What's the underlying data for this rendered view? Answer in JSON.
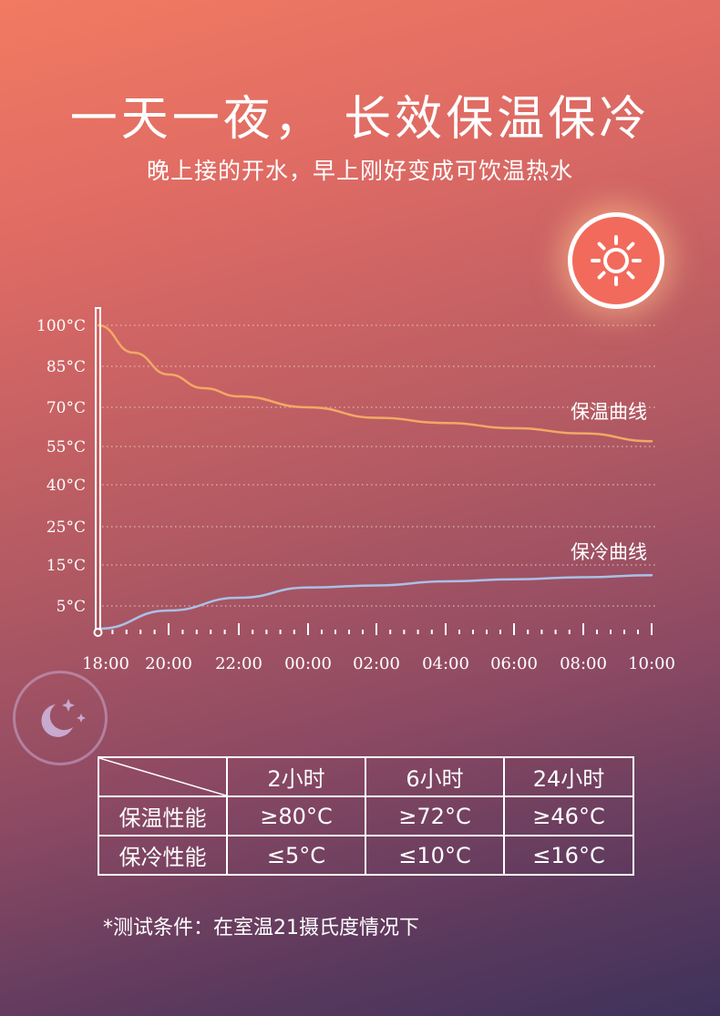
{
  "title": "一天一夜，  长效保温保冷",
  "subtitle": "晚上接的开水，早上刚好变成可饮温热水",
  "icons": {
    "day": "sun-icon",
    "night": "moon-stars-icon"
  },
  "colors": {
    "hot_curve": "#f2a866",
    "cold_curve": "#a9c1e6",
    "grid": "#e8c9c0"
  },
  "chart_data": {
    "type": "line",
    "title": "",
    "xlabel": "",
    "ylabel": "",
    "x_ticks": [
      "18:00",
      "20:00",
      "22:00",
      "00:00",
      "02:00",
      "04:00",
      "06:00",
      "08:00",
      "10:00"
    ],
    "y_ticks": [
      "100°C",
      "85°C",
      "70°C",
      "55°C",
      "40°C",
      "25°C",
      "15°C",
      "5°C"
    ],
    "grid": true,
    "series": [
      {
        "name": "保温曲线",
        "x": [
          "18:00",
          "19:00",
          "20:00",
          "21:00",
          "22:00",
          "00:00",
          "02:00",
          "04:00",
          "06:00",
          "08:00",
          "10:00"
        ],
        "values": [
          100,
          90,
          82,
          77,
          74,
          70,
          66,
          64,
          62,
          60,
          57
        ]
      },
      {
        "name": "保冷曲线",
        "x": [
          "18:00",
          "20:00",
          "22:00",
          "00:00",
          "02:00",
          "04:00",
          "06:00",
          "08:00",
          "10:00"
        ],
        "values": [
          0,
          4,
          7,
          9.5,
          10,
          11,
          11.5,
          12,
          12.5
        ]
      }
    ]
  },
  "table": {
    "headers": [
      "2小时",
      "6小时",
      "24小时"
    ],
    "rows": [
      {
        "label": "保温性能",
        "cells": [
          "≥80°C",
          "≥72°C",
          "≥46°C"
        ]
      },
      {
        "label": "保冷性能",
        "cells": [
          "≤5°C",
          "≤10°C",
          "≤16°C"
        ]
      }
    ]
  },
  "note": "*测试条件：在室温21摄氏度情况下"
}
